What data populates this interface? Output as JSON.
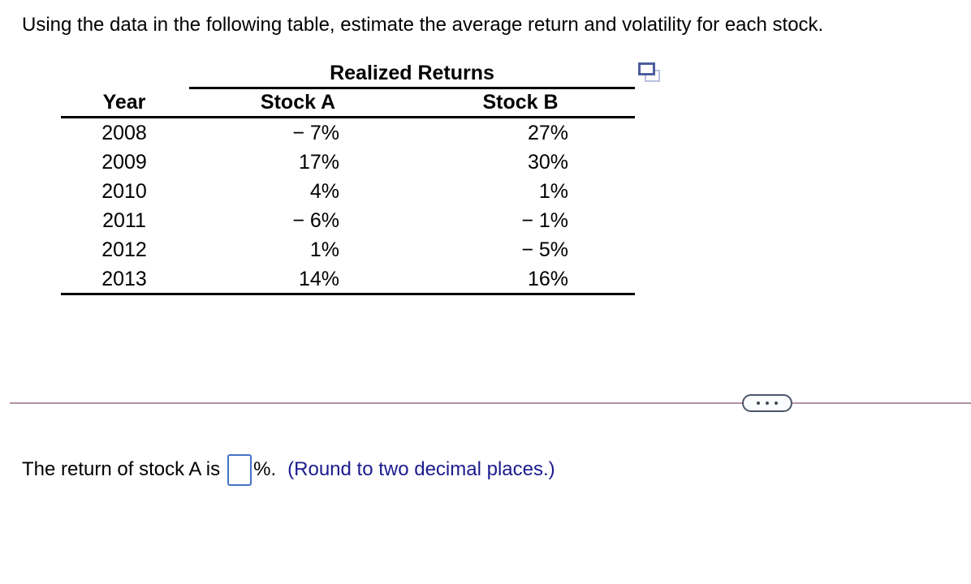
{
  "page": {
    "instruction": "Using the data in the following table, estimate the average return and volatility for each stock."
  },
  "table": {
    "caption": "Realized Returns",
    "columns": {
      "year": "Year",
      "stock_a": "Stock A",
      "stock_b": "Stock B"
    },
    "rows": [
      {
        "year": "2008",
        "stock_a": "− 7%",
        "stock_b": "27%"
      },
      {
        "year": "2009",
        "stock_a": "17%",
        "stock_b": "30%"
      },
      {
        "year": "2010",
        "stock_a": "4%",
        "stock_b": "1%"
      },
      {
        "year": "2011",
        "stock_a": "− 6%",
        "stock_b": "− 1%"
      },
      {
        "year": "2012",
        "stock_a": "1%",
        "stock_b": "− 5%"
      },
      {
        "year": "2013",
        "stock_a": "14%",
        "stock_b": "16%"
      }
    ],
    "icons": {
      "copy_icon": "copy-table-icon"
    }
  },
  "divider": {
    "more_button": "more-options (ellipsis)"
  },
  "question": {
    "prefix": "The return of stock A is",
    "answer_value": "",
    "suffix": "%.",
    "hint": "(Round to two decimal places.)"
  },
  "colors": {
    "text": "#000000",
    "hint_blue": "#1b1b8e",
    "input_border_blue": "#4472c4",
    "divider_mauve": "#b192a4",
    "icon_front_blue": "#4d5e9e",
    "icon_back_blue": "#b7c0de",
    "pill_border": "#4b5669"
  }
}
